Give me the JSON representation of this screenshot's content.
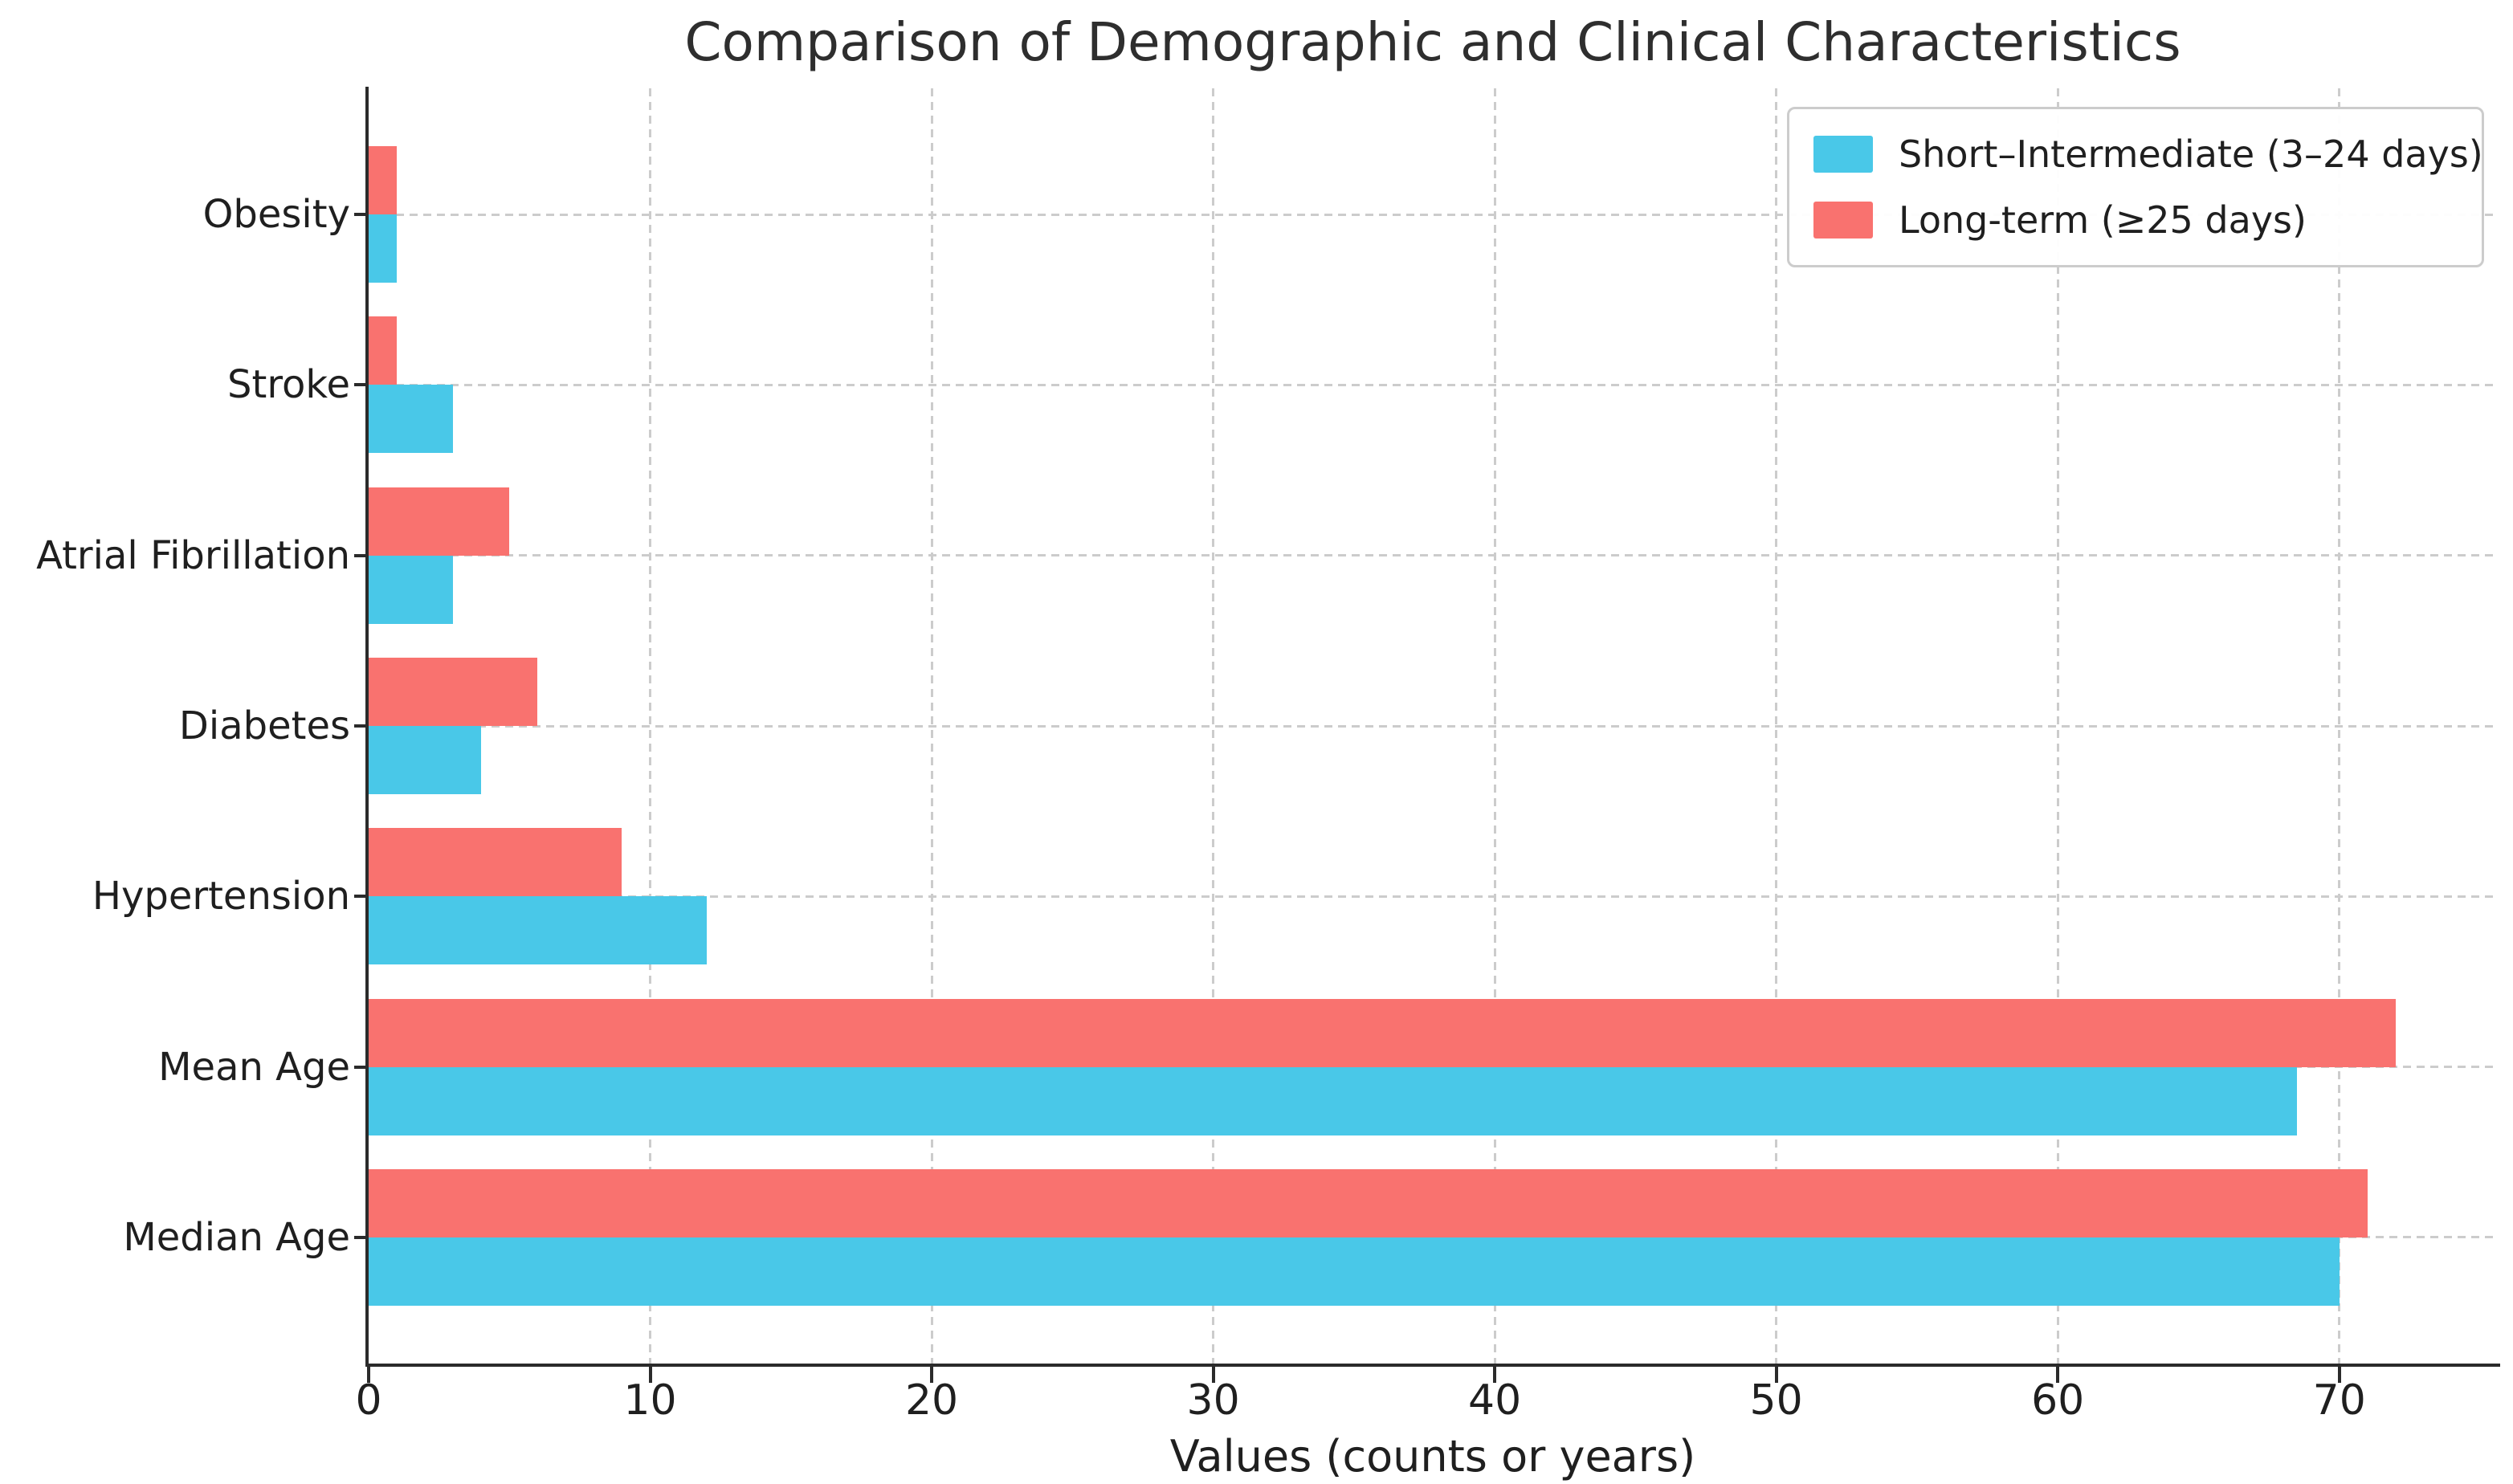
{
  "figure": {
    "background": "#ffffff",
    "text_color": "#1f1f1f",
    "spine_color": "#2b2b2b",
    "grid_color": "#cccccc"
  },
  "chart_data": {
    "type": "bar",
    "orientation": "horizontal",
    "title": "Comparison of Demographic and Clinical Characteristics",
    "xlabel": "Values (counts or years)",
    "ylabel": "",
    "categories": [
      "Obesity",
      "Stroke",
      "Atrial Fibrillation",
      "Diabetes",
      "Hypertension",
      "Mean Age",
      "Median Age"
    ],
    "series": [
      {
        "name": "Short–Intermediate (3–24 days)",
        "color": "#49C8E8",
        "values": [
          1,
          3,
          3,
          4,
          12,
          68.5,
          70
        ]
      },
      {
        "name": "Long-term (≥25 days)",
        "color": "#F9726F",
        "values": [
          1,
          1,
          5,
          6,
          9,
          72,
          71
        ]
      }
    ],
    "xlim": [
      0,
      75.6
    ],
    "xticks": [
      0,
      10,
      20,
      30,
      40,
      50,
      60,
      70
    ],
    "grid": {
      "on": true,
      "style": "dashed",
      "axes": "both",
      "axisbelow": true
    },
    "legend_position": "upper right",
    "group_layout": "long-term bar above short-intermediate bar in each category group"
  }
}
